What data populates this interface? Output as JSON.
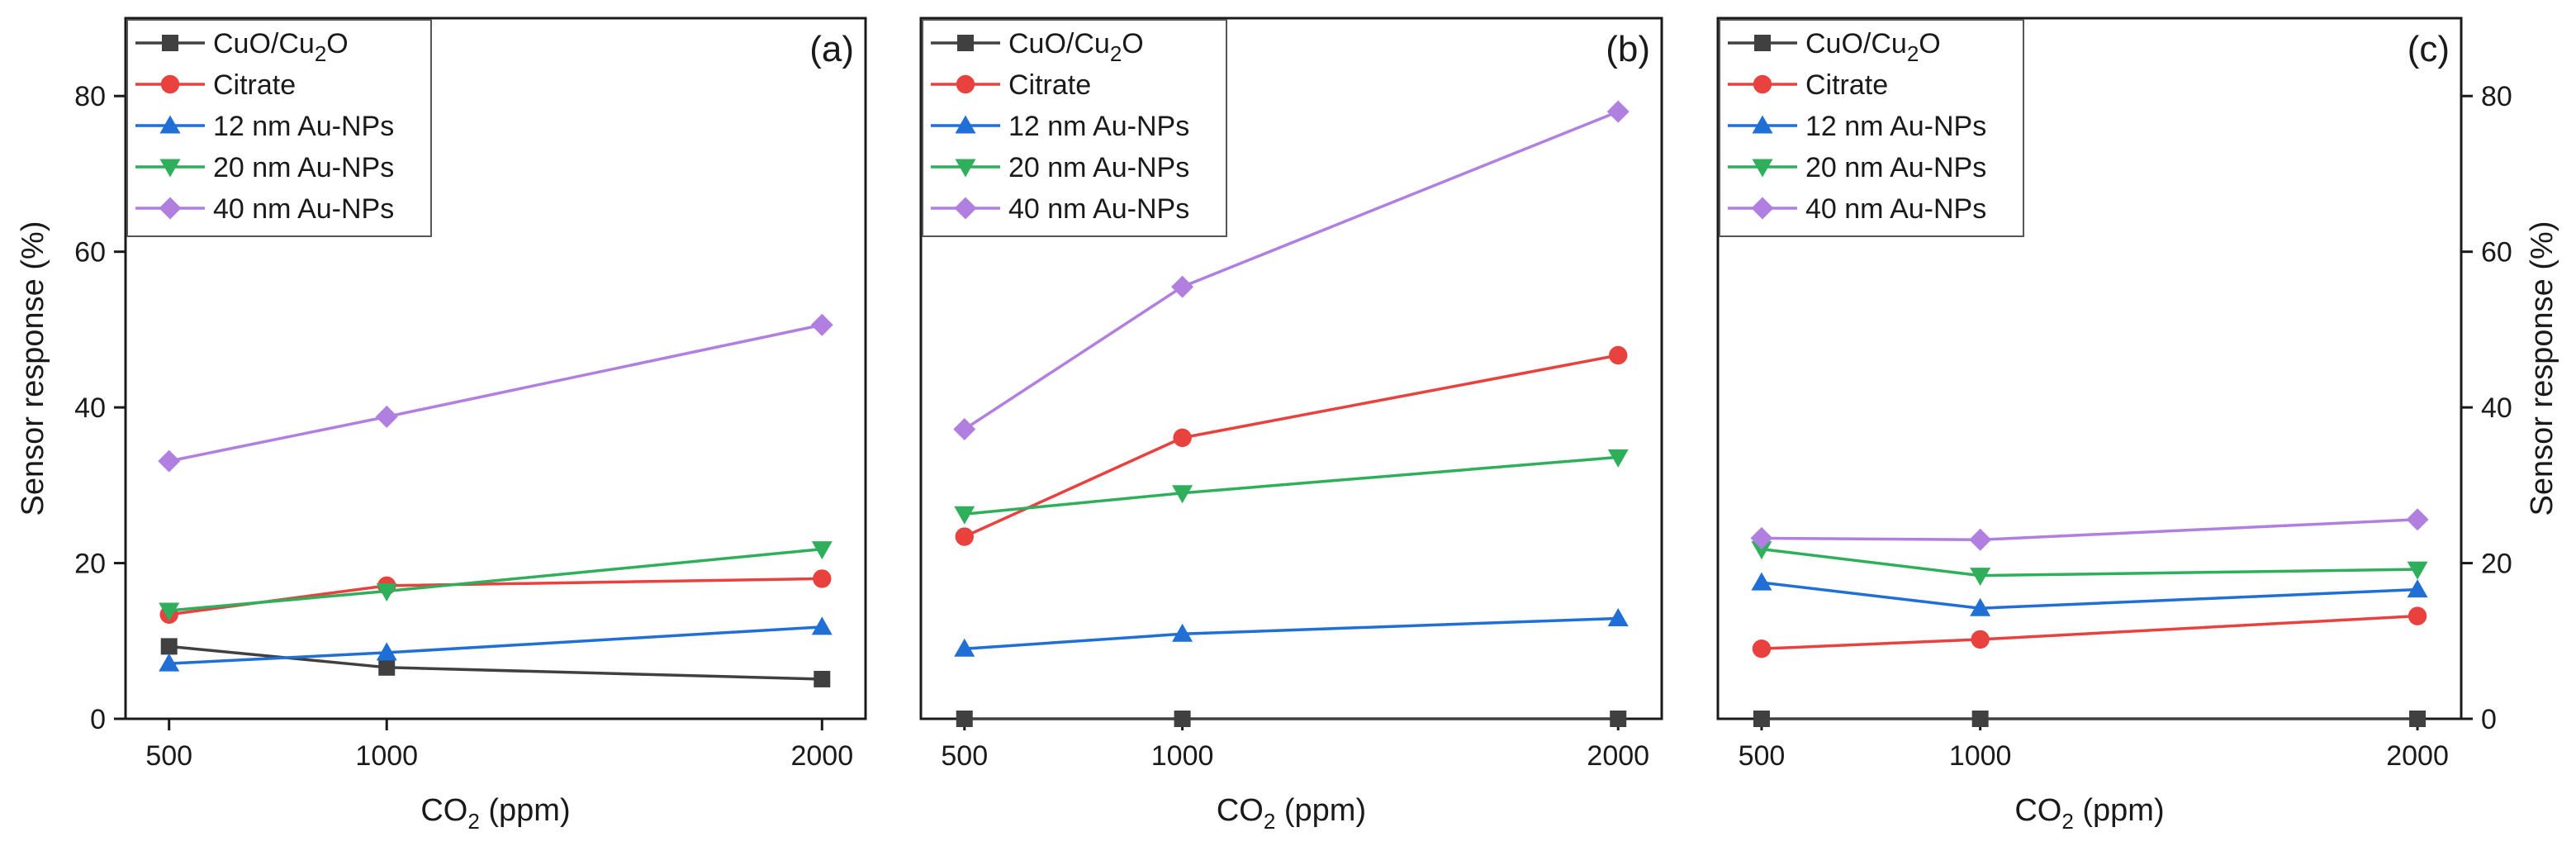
{
  "chart_data": [
    {
      "type": "line",
      "panel_label": "(a)",
      "x": [
        500,
        1000,
        2000
      ],
      "xticklabels": [
        "500",
        "1000",
        "2000"
      ],
      "xlabel": "CO2 (ppm)",
      "xlabel_parts": {
        "main": "CO",
        "sub": "2",
        "rest": " (ppm)"
      },
      "ylabel": "Sensor response (%)",
      "ylim": [
        0,
        90
      ],
      "yticks": [
        0,
        20,
        40,
        60,
        80
      ],
      "yticklabels": [
        "0",
        "20",
        "40",
        "60",
        "80"
      ],
      "yaxis_side": "left",
      "legend_position": "top-left",
      "series": [
        {
          "name": "CuO/Cu2O",
          "legend_parts": {
            "main": "CuO/Cu",
            "sub": "2",
            "rest": "O"
          },
          "marker": "square",
          "color": "#404040",
          "values": [
            9.3,
            6.6,
            5.1
          ]
        },
        {
          "name": "Citrate",
          "marker": "circle",
          "color": "#e8413e",
          "values": [
            13.4,
            17.1,
            18.0
          ]
        },
        {
          "name": "12 nm Au-NPs",
          "marker": "triangle-up",
          "color": "#1f6fd6",
          "values": [
            7.1,
            8.5,
            11.8
          ]
        },
        {
          "name": "20 nm Au-NPs",
          "marker": "triangle-down",
          "color": "#2fae5b",
          "values": [
            13.9,
            16.4,
            21.8
          ]
        },
        {
          "name": "40 nm Au-NPs",
          "marker": "diamond",
          "color": "#b07fe0",
          "values": [
            33.1,
            38.8,
            50.6
          ]
        }
      ]
    },
    {
      "type": "line",
      "panel_label": "(b)",
      "x": [
        500,
        1000,
        2000
      ],
      "xticklabels": [
        "500",
        "1000",
        "2000"
      ],
      "xlabel": "CO2 (ppm)",
      "xlabel_parts": {
        "main": "CO",
        "sub": "2",
        "rest": " (ppm)"
      },
      "ylabel": "",
      "ylim": [
        0,
        90
      ],
      "yticks": [
        0,
        20,
        40,
        60,
        80
      ],
      "yticklabels": [],
      "yaxis_side": "none",
      "legend_position": "top-left",
      "series": [
        {
          "name": "CuO/Cu2O",
          "legend_parts": {
            "main": "CuO/Cu",
            "sub": "2",
            "rest": "O"
          },
          "marker": "square",
          "color": "#404040",
          "values": [
            0,
            0,
            0
          ]
        },
        {
          "name": "Citrate",
          "marker": "circle",
          "color": "#e8413e",
          "values": [
            23.4,
            36.1,
            46.7
          ]
        },
        {
          "name": "12 nm Au-NPs",
          "marker": "triangle-up",
          "color": "#1f6fd6",
          "values": [
            9.0,
            10.9,
            12.9
          ]
        },
        {
          "name": "20 nm Au-NPs",
          "marker": "triangle-down",
          "color": "#2fae5b",
          "values": [
            26.3,
            29.0,
            33.6
          ]
        },
        {
          "name": "40 nm Au-NPs",
          "marker": "diamond",
          "color": "#b07fe0",
          "values": [
            37.2,
            55.5,
            78.0
          ]
        }
      ]
    },
    {
      "type": "line",
      "panel_label": "(c)",
      "x": [
        500,
        1000,
        2000
      ],
      "xticklabels": [
        "500",
        "1000",
        "2000"
      ],
      "xlabel": "CO2 (ppm)",
      "xlabel_parts": {
        "main": "CO",
        "sub": "2",
        "rest": " (ppm)"
      },
      "ylabel": "Sensor response (%)",
      "ylim": [
        0,
        90
      ],
      "yticks": [
        0,
        20,
        40,
        60,
        80
      ],
      "yticklabels": [
        "0",
        "20",
        "40",
        "60",
        "80"
      ],
      "yaxis_side": "right",
      "legend_position": "top-left",
      "series": [
        {
          "name": "CuO/Cu2O",
          "legend_parts": {
            "main": "CuO/Cu",
            "sub": "2",
            "rest": "O"
          },
          "marker": "square",
          "color": "#404040",
          "values": [
            0,
            0,
            0
          ]
        },
        {
          "name": "Citrate",
          "marker": "circle",
          "color": "#e8413e",
          "values": [
            9.0,
            10.2,
            13.2
          ]
        },
        {
          "name": "12 nm Au-NPs",
          "marker": "triangle-up",
          "color": "#1f6fd6",
          "values": [
            17.5,
            14.2,
            16.6
          ]
        },
        {
          "name": "20 nm Au-NPs",
          "marker": "triangle-down",
          "color": "#2fae5b",
          "values": [
            21.8,
            18.4,
            19.2
          ]
        },
        {
          "name": "40 nm Au-NPs",
          "marker": "diamond",
          "color": "#b07fe0",
          "values": [
            23.2,
            23.0,
            25.6
          ]
        }
      ]
    }
  ]
}
